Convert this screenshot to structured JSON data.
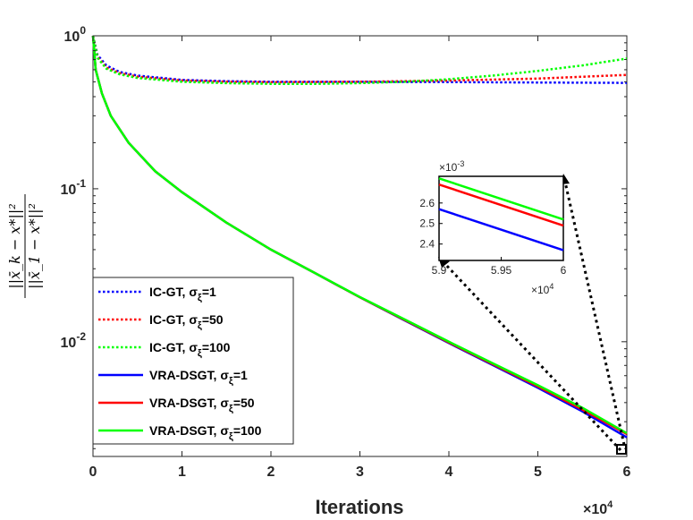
{
  "chart_data": {
    "type": "line",
    "xlabel": "Iterations",
    "x_exponent": "×10^4",
    "ylabel_numerator": "||x̄_k − x*||²",
    "ylabel_denominator": "||x̄_1 − x*||²",
    "xlim": [
      0,
      6
    ],
    "ylim_log10": [
      -2.75,
      0
    ],
    "yscale": "log",
    "x_tick_labels": [
      "0",
      "1",
      "2",
      "3",
      "4",
      "5",
      "6"
    ],
    "y_tick_labels": [
      {
        "base": "10",
        "exp": "0",
        "value": 1
      },
      {
        "base": "10",
        "exp": "-1",
        "value": 0.1
      },
      {
        "base": "10",
        "exp": "-2",
        "value": 0.01
      }
    ],
    "legend": [
      {
        "label": "IC-GT, σ",
        "sub": "ξ",
        "suffix": "=1",
        "color": "#0000ff",
        "style": "dotted"
      },
      {
        "label": "IC-GT, σ",
        "sub": "ξ",
        "suffix": "=50",
        "color": "#ff0000",
        "style": "dotted"
      },
      {
        "label": "IC-GT, σ",
        "sub": "ξ",
        "suffix": "=100",
        "color": "#00ff00",
        "style": "dotted"
      },
      {
        "label": "VRA-DSGT, σ",
        "sub": "ξ",
        "suffix": "=1",
        "color": "#0000ff",
        "style": "solid"
      },
      {
        "label": "VRA-DSGT, σ",
        "sub": "ξ",
        "suffix": "=50",
        "color": "#ff0000",
        "style": "solid"
      },
      {
        "label": "VRA-DSGT, σ",
        "sub": "ξ",
        "suffix": "=100",
        "color": "#00ff00",
        "style": "solid"
      }
    ],
    "series": [
      {
        "name": "IC-GT, sigma=1",
        "color": "#0000ff",
        "style": "dotted",
        "x": [
          0,
          0.05,
          0.15,
          0.3,
          0.5,
          1,
          1.5,
          2,
          3,
          4,
          5,
          6
        ],
        "y": [
          1,
          0.75,
          0.64,
          0.58,
          0.55,
          0.515,
          0.505,
          0.5,
          0.5,
          0.498,
          0.495,
          0.492
        ]
      },
      {
        "name": "IC-GT, sigma=50",
        "color": "#ff0000",
        "style": "dotted",
        "x": [
          0,
          0.05,
          0.15,
          0.3,
          0.5,
          1,
          1.5,
          2,
          3,
          4,
          5,
          6
        ],
        "y": [
          1,
          0.73,
          0.62,
          0.57,
          0.54,
          0.51,
          0.5,
          0.497,
          0.5,
          0.51,
          0.525,
          0.555
        ]
      },
      {
        "name": "IC-GT, sigma=100",
        "color": "#00ff00",
        "style": "dotted",
        "x": [
          0,
          0.05,
          0.15,
          0.3,
          0.5,
          1,
          1.5,
          2,
          2.5,
          3,
          3.5,
          4,
          4.5,
          5,
          5.5,
          6
        ],
        "y": [
          1,
          0.72,
          0.61,
          0.56,
          0.53,
          0.5,
          0.49,
          0.485,
          0.485,
          0.49,
          0.5,
          0.52,
          0.55,
          0.59,
          0.64,
          0.71
        ]
      },
      {
        "name": "VRA-DSGT, sigma=1",
        "color": "#0000ff",
        "style": "solid",
        "x": [
          0,
          0.03,
          0.1,
          0.2,
          0.4,
          0.7,
          1,
          1.5,
          2,
          2.5,
          3,
          3.5,
          4,
          4.5,
          5,
          5.5,
          6
        ],
        "y": [
          1,
          0.6,
          0.42,
          0.3,
          0.2,
          0.13,
          0.095,
          0.06,
          0.04,
          0.028,
          0.0195,
          0.0138,
          0.0098,
          0.007,
          0.005,
          0.0035,
          0.00237
        ]
      },
      {
        "name": "VRA-DSGT, sigma=50",
        "color": "#ff0000",
        "style": "solid",
        "x": [
          0,
          0.03,
          0.1,
          0.2,
          0.4,
          0.7,
          1,
          1.5,
          2,
          2.5,
          3,
          3.5,
          4,
          4.5,
          5,
          5.5,
          6
        ],
        "y": [
          1,
          0.6,
          0.42,
          0.3,
          0.2,
          0.13,
          0.095,
          0.06,
          0.04,
          0.028,
          0.0195,
          0.0139,
          0.0099,
          0.0071,
          0.0051,
          0.0036,
          0.00249
        ]
      },
      {
        "name": "VRA-DSGT, sigma=100",
        "color": "#00ff00",
        "style": "solid",
        "x": [
          0,
          0.03,
          0.1,
          0.2,
          0.4,
          0.7,
          1,
          1.5,
          2,
          2.5,
          3,
          3.5,
          4,
          4.5,
          5,
          5.5,
          6
        ],
        "y": [
          1,
          0.6,
          0.42,
          0.3,
          0.2,
          0.13,
          0.095,
          0.06,
          0.04,
          0.028,
          0.0196,
          0.014,
          0.01,
          0.0072,
          0.0052,
          0.0037,
          0.00252
        ]
      }
    ],
    "inset": {
      "xlim": [
        5.9,
        6
      ],
      "ylim": [
        2.32,
        2.73
      ],
      "x_tick_labels": [
        "5.9",
        "5.95",
        "6"
      ],
      "y_tick_labels": [
        "2.4",
        "2.5",
        "2.6"
      ],
      "y_tick_values": [
        2.4,
        2.5,
        2.6
      ],
      "x_tick_values": [
        5.9,
        5.95,
        6
      ],
      "y_exponent": "×10^-3",
      "x_exponent": "×10^4",
      "lines": [
        {
          "color": "#0000ff",
          "y_start": 2.57,
          "y_end": 2.37
        },
        {
          "color": "#ff0000",
          "y_start": 2.69,
          "y_end": 2.49
        },
        {
          "color": "#00ff00",
          "y_start": 2.72,
          "y_end": 2.52
        }
      ]
    }
  }
}
